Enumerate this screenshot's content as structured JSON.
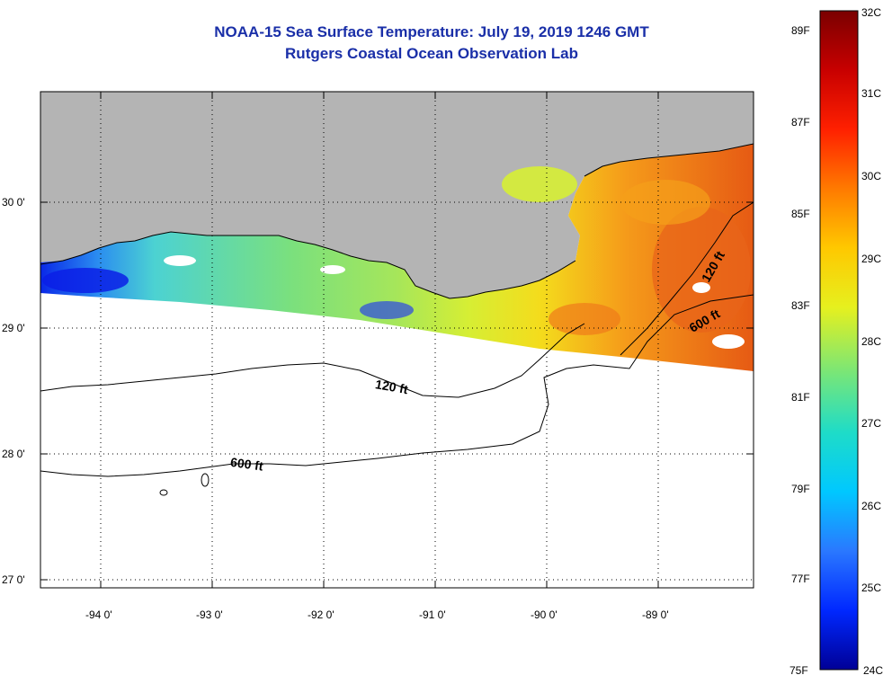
{
  "header": {
    "title": "NOAA-15 Sea Surface Temperature:  July 19, 2019 1246 GMT",
    "subtitle": "Rutgers Coastal Ocean Observation Lab"
  },
  "map": {
    "lon_labels": [
      "-94 0'",
      "-93 0'",
      "-92 0'",
      "-91 0'",
      "-90 0'",
      "-89 0'"
    ],
    "lat_labels": [
      "30 0'",
      "29 0'",
      "28 0'",
      "27 0'"
    ],
    "contour_labels": [
      {
        "text": "120 ft"
      },
      {
        "text": "600 ft"
      },
      {
        "text": "120 ft"
      },
      {
        "text": "600 ft"
      }
    ],
    "colors": {
      "land": "#b4b4b4",
      "no_data": "#ffffff"
    }
  },
  "colorbar": {
    "fahrenheit_labels": [
      "89F",
      "87F",
      "85F",
      "83F",
      "81F",
      "79F",
      "77F",
      "75F"
    ],
    "celsius_labels": [
      "32C",
      "31C",
      "30C",
      "29C",
      "28C",
      "27C",
      "26C",
      "25C",
      "24C"
    ],
    "stops": [
      "#7a0000",
      "#c80000",
      "#ff2000",
      "#ff7a00",
      "#ffc800",
      "#e6f01e",
      "#78e678",
      "#1edcc8",
      "#00c8ff",
      "#2a78ff",
      "#0028ff",
      "#000096"
    ]
  }
}
